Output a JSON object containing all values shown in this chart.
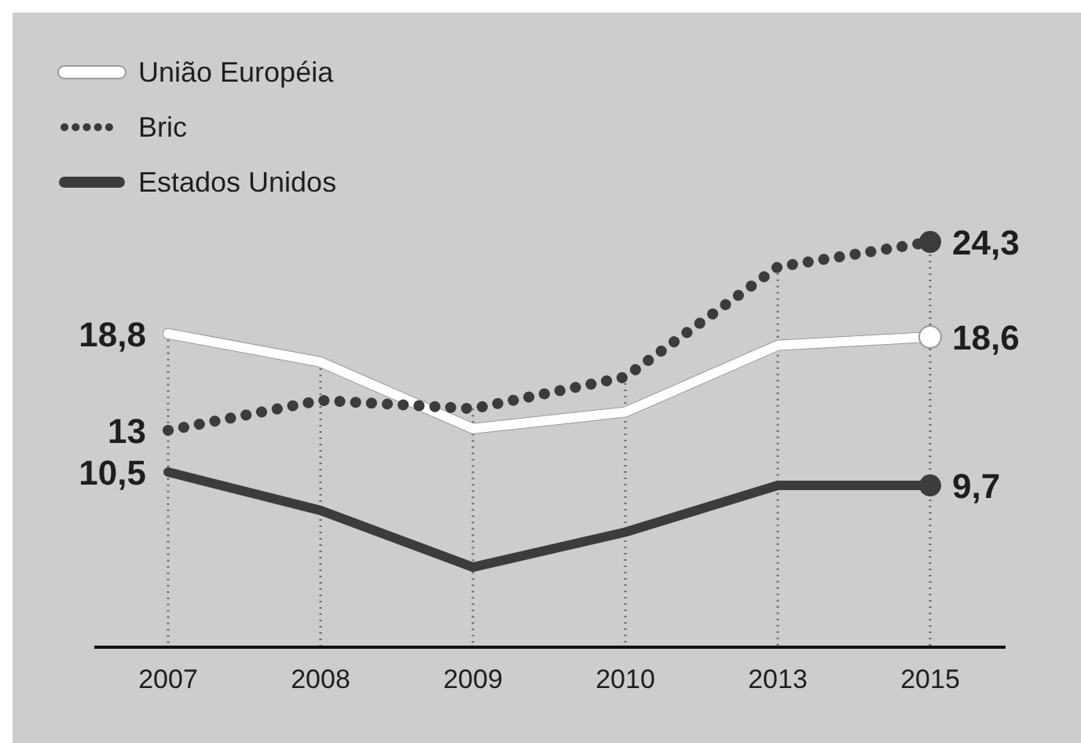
{
  "chart_data": {
    "type": "line",
    "categories": [
      "2007",
      "2008",
      "2009",
      "2010",
      "2013",
      "2015"
    ],
    "legend": "top left",
    "grid": "x",
    "series": [
      {
        "name": "União Européia",
        "color": "#ffffff",
        "line_style": "solid",
        "values": [
          18.8,
          17.1,
          13.1,
          14.1,
          18.1,
          18.6
        ],
        "value_labels": [
          "18,8",
          null,
          null,
          null,
          null,
          "18,6"
        ]
      },
      {
        "name": "Bric",
        "color": "#3c3c3c",
        "line_style": "dotted",
        "values": [
          13,
          14.8,
          14.3,
          16.2,
          22.8,
          24.3
        ],
        "value_labels": [
          "13",
          null,
          null,
          null,
          null,
          "24,3"
        ]
      },
      {
        "name": "Estados Unidos",
        "color": "#3c3c3c",
        "line_style": "solid",
        "values": [
          10.5,
          8.2,
          4.8,
          6.9,
          9.7,
          9.7
        ],
        "value_labels": [
          "10,5",
          null,
          null,
          null,
          null,
          "9,7"
        ]
      }
    ]
  }
}
